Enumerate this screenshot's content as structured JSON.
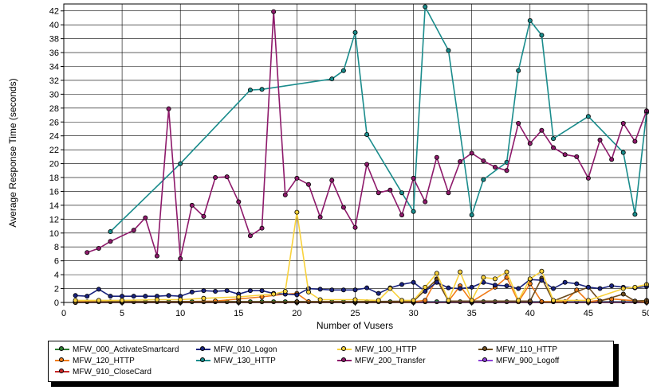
{
  "chart_data": {
    "type": "line",
    "title": "",
    "xlabel": "Number of Vusers",
    "ylabel": "Average Response Time (seconds)",
    "xlim": [
      0,
      50
    ],
    "ylim": [
      0,
      43
    ],
    "x_ticks": [
      "0",
      "5",
      "10",
      "15",
      "20",
      "25",
      "30",
      "35",
      "40",
      "45",
      "50"
    ],
    "y_ticks": [
      "0",
      "2",
      "4",
      "6",
      "8",
      "10",
      "12",
      "14",
      "16",
      "18",
      "20",
      "22",
      "24",
      "26",
      "28",
      "30",
      "32",
      "34",
      "36",
      "38",
      "40",
      "42"
    ],
    "grid": true,
    "legend_position": "bottom",
    "series": [
      {
        "name": "MFW_000_ActivateSmartcard",
        "color": "#2e7d32",
        "points": [
          [
            1,
            0.1
          ],
          [
            2,
            0.1
          ],
          [
            3,
            0.1
          ],
          [
            4,
            0.1
          ],
          [
            5,
            0.1
          ],
          [
            6,
            0.1
          ],
          [
            7,
            0.1
          ],
          [
            8,
            0.1
          ],
          [
            9,
            0.1
          ],
          [
            10,
            0.1
          ],
          [
            11,
            0.1
          ],
          [
            12,
            0.1
          ],
          [
            13,
            0.1
          ],
          [
            14,
            0.1
          ],
          [
            15,
            0.1
          ],
          [
            16,
            0.1
          ],
          [
            17,
            0.1
          ],
          [
            18,
            0.1
          ],
          [
            19,
            0.1
          ],
          [
            20,
            0.1
          ],
          [
            21,
            0.1
          ],
          [
            22,
            0.1
          ],
          [
            23,
            0.1
          ],
          [
            24,
            0.1
          ],
          [
            25,
            0.1
          ],
          [
            26,
            0.1
          ],
          [
            27,
            0.1
          ],
          [
            28,
            0.1
          ],
          [
            29,
            0.1
          ],
          [
            30,
            0.1
          ],
          [
            31,
            0.1
          ],
          [
            32,
            0.1
          ],
          [
            33,
            0.1
          ],
          [
            34,
            0.1
          ],
          [
            35,
            0.1
          ],
          [
            36,
            0.1
          ],
          [
            37,
            0.1
          ],
          [
            38,
            0.1
          ],
          [
            39,
            0.1
          ],
          [
            40,
            0.1
          ],
          [
            41,
            0.1
          ],
          [
            42,
            0.1
          ],
          [
            43,
            0.1
          ],
          [
            44,
            0.1
          ],
          [
            45,
            0.1
          ],
          [
            46,
            0.1
          ],
          [
            47,
            0.1
          ],
          [
            48,
            0.1
          ],
          [
            49,
            0.1
          ],
          [
            50,
            0.1
          ]
        ]
      },
      {
        "name": "MFW_010_Logon",
        "color": "#1a237e",
        "points": [
          [
            1,
            1.0
          ],
          [
            2,
            0.9
          ],
          [
            3,
            1.9
          ],
          [
            4,
            0.9
          ],
          [
            5,
            0.9
          ],
          [
            6,
            0.9
          ],
          [
            7,
            0.9
          ],
          [
            8,
            0.9
          ],
          [
            9,
            1.0
          ],
          [
            10,
            0.9
          ],
          [
            11,
            1.5
          ],
          [
            12,
            1.7
          ],
          [
            13,
            1.6
          ],
          [
            14,
            1.7
          ],
          [
            15,
            1.2
          ],
          [
            16,
            1.7
          ],
          [
            17,
            1.7
          ],
          [
            18,
            1.3
          ],
          [
            19,
            1.2
          ],
          [
            20,
            1.1
          ],
          [
            21,
            2.0
          ],
          [
            22,
            1.9
          ],
          [
            23,
            1.8
          ],
          [
            24,
            1.8
          ],
          [
            25,
            1.8
          ],
          [
            26,
            2.1
          ],
          [
            27,
            1.3
          ],
          [
            28,
            2.1
          ],
          [
            29,
            2.6
          ],
          [
            30,
            2.9
          ],
          [
            31,
            1.6
          ],
          [
            32,
            2.9
          ],
          [
            33,
            2.1
          ],
          [
            34,
            2.0
          ],
          [
            35,
            2.2
          ],
          [
            36,
            2.9
          ],
          [
            37,
            2.5
          ],
          [
            38,
            2.4
          ],
          [
            39,
            2.0
          ],
          [
            40,
            3.3
          ],
          [
            41,
            3.2
          ],
          [
            42,
            2.0
          ],
          [
            43,
            2.9
          ],
          [
            44,
            2.7
          ],
          [
            45,
            2.2
          ],
          [
            46,
            2.0
          ],
          [
            47,
            2.4
          ],
          [
            48,
            2.2
          ],
          [
            49,
            2.1
          ],
          [
            50,
            2.3
          ]
        ]
      },
      {
        "name": "MFW_100_HTTP",
        "color": "#f9d23c",
        "points": [
          [
            1,
            0.3
          ],
          [
            3,
            0.3
          ],
          [
            5,
            0.3
          ],
          [
            8,
            0.4
          ],
          [
            10,
            0.4
          ],
          [
            12,
            0.6
          ],
          [
            15,
            0.8
          ],
          [
            18,
            1.2
          ],
          [
            19,
            1.6
          ],
          [
            20,
            13.0
          ],
          [
            21,
            1.5
          ],
          [
            22,
            0.4
          ],
          [
            25,
            0.4
          ],
          [
            27,
            0.3
          ],
          [
            28,
            2.0
          ],
          [
            29,
            0.3
          ],
          [
            30,
            0.3
          ],
          [
            31,
            2.2
          ],
          [
            32,
            4.2
          ],
          [
            33,
            0.3
          ],
          [
            34,
            4.4
          ],
          [
            35,
            0.3
          ],
          [
            36,
            3.6
          ],
          [
            37,
            3.4
          ],
          [
            38,
            4.4
          ],
          [
            39,
            0.3
          ],
          [
            40,
            3.4
          ],
          [
            41,
            4.5
          ],
          [
            42,
            0.3
          ],
          [
            45,
            0.3
          ],
          [
            48,
            2.0
          ],
          [
            49,
            2.2
          ],
          [
            50,
            2.6
          ]
        ]
      },
      {
        "name": "MFW_110_HTTP",
        "color": "#6d4c1f",
        "points": [
          [
            1,
            0.0
          ],
          [
            5,
            0.1
          ],
          [
            10,
            0.1
          ],
          [
            15,
            0.1
          ],
          [
            20,
            0.1
          ],
          [
            25,
            0.1
          ],
          [
            30,
            0.2
          ],
          [
            32,
            3.3
          ],
          [
            33,
            0.2
          ],
          [
            35,
            0.2
          ],
          [
            40,
            0.2
          ],
          [
            41,
            3.5
          ],
          [
            42,
            0.2
          ],
          [
            45,
            2.2
          ],
          [
            46,
            0.2
          ],
          [
            48,
            1.2
          ],
          [
            49,
            0.2
          ],
          [
            50,
            0.3
          ]
        ]
      },
      {
        "name": "MFW_120_HTTP",
        "color": "#f07c1a",
        "points": [
          [
            1,
            0.1
          ],
          [
            5,
            0.1
          ],
          [
            10,
            0.1
          ],
          [
            13,
            0.2
          ],
          [
            15,
            0.5
          ],
          [
            17,
            0.8
          ],
          [
            19,
            1.2
          ],
          [
            20,
            1.3
          ],
          [
            21,
            0.1
          ],
          [
            25,
            0.1
          ],
          [
            30,
            0.1
          ],
          [
            31,
            0.3
          ],
          [
            32,
            3.4
          ],
          [
            33,
            0.2
          ],
          [
            34,
            2.4
          ],
          [
            35,
            0.1
          ],
          [
            37,
            2.2
          ],
          [
            38,
            3.6
          ],
          [
            39,
            0.1
          ],
          [
            40,
            2.7
          ],
          [
            41,
            0.1
          ],
          [
            43,
            0.1
          ],
          [
            44,
            1.8
          ],
          [
            45,
            0.1
          ],
          [
            47,
            0.5
          ],
          [
            50,
            0.1
          ]
        ]
      },
      {
        "name": "MFW_130_HTTP",
        "color": "#1a8c8c",
        "points": [
          [
            4,
            10.2
          ],
          [
            10,
            20.0
          ],
          [
            16,
            30.6
          ],
          [
            17,
            30.7
          ],
          [
            23,
            32.2
          ],
          [
            24,
            33.4
          ],
          [
            25,
            38.9
          ],
          [
            26,
            24.2
          ],
          [
            29,
            15.8
          ],
          [
            30,
            13.1
          ],
          [
            31,
            42.6
          ],
          [
            33,
            36.3
          ],
          [
            35,
            12.6
          ],
          [
            36,
            17.7
          ],
          [
            38,
            20.2
          ],
          [
            39,
            33.4
          ],
          [
            40,
            40.6
          ],
          [
            41,
            38.5
          ],
          [
            42,
            23.6
          ],
          [
            45,
            26.8
          ],
          [
            48,
            21.6
          ],
          [
            49,
            12.7
          ],
          [
            50,
            27.4
          ]
        ]
      },
      {
        "name": "MFW_200_Transfer",
        "color": "#8e1a6b",
        "points": [
          [
            2,
            7.2
          ],
          [
            3,
            7.8
          ],
          [
            4,
            8.8
          ],
          [
            6,
            10.4
          ],
          [
            7,
            12.2
          ],
          [
            8,
            6.7
          ],
          [
            9,
            27.9
          ],
          [
            10,
            6.3
          ],
          [
            11,
            14.0
          ],
          [
            12,
            12.4
          ],
          [
            13,
            18.0
          ],
          [
            14,
            18.1
          ],
          [
            15,
            14.5
          ],
          [
            16,
            9.6
          ],
          [
            17,
            10.7
          ],
          [
            18,
            41.9
          ],
          [
            19,
            15.5
          ],
          [
            20,
            17.9
          ],
          [
            21,
            17.0
          ],
          [
            22,
            12.3
          ],
          [
            23,
            17.6
          ],
          [
            24,
            13.7
          ],
          [
            25,
            10.8
          ],
          [
            26,
            19.9
          ],
          [
            27,
            15.8
          ],
          [
            28,
            16.2
          ],
          [
            29,
            12.6
          ],
          [
            30,
            17.9
          ],
          [
            31,
            14.5
          ],
          [
            32,
            20.9
          ],
          [
            33,
            15.8
          ],
          [
            34,
            20.3
          ],
          [
            35,
            21.5
          ],
          [
            36,
            20.4
          ],
          [
            37,
            19.5
          ],
          [
            38,
            19.0
          ],
          [
            39,
            25.8
          ],
          [
            40,
            22.9
          ],
          [
            41,
            24.8
          ],
          [
            42,
            22.3
          ],
          [
            43,
            21.3
          ],
          [
            44,
            21.0
          ],
          [
            45,
            17.9
          ],
          [
            46,
            23.4
          ],
          [
            47,
            20.6
          ],
          [
            48,
            25.8
          ],
          [
            49,
            23.2
          ],
          [
            50,
            27.6
          ]
        ]
      },
      {
        "name": "MFW_900_Logoff",
        "color": "#8c3fd6",
        "points": [
          [
            1,
            0.05
          ],
          [
            5,
            0.05
          ],
          [
            10,
            0.05
          ],
          [
            15,
            0.05
          ],
          [
            20,
            0.05
          ],
          [
            25,
            0.05
          ],
          [
            30,
            0.05
          ],
          [
            35,
            0.05
          ],
          [
            40,
            0.05
          ],
          [
            45,
            0.05
          ],
          [
            50,
            0.05
          ]
        ]
      },
      {
        "name": "MFW_910_CloseCard",
        "color": "#c62828",
        "points": [
          [
            1,
            0.0
          ],
          [
            5,
            0.0
          ],
          [
            10,
            0.0
          ],
          [
            15,
            0.0
          ],
          [
            20,
            0.0
          ],
          [
            25,
            0.0
          ],
          [
            30,
            0.0
          ],
          [
            35,
            0.0
          ],
          [
            40,
            0.0
          ],
          [
            45,
            0.0
          ],
          [
            50,
            0.0
          ]
        ]
      }
    ]
  }
}
